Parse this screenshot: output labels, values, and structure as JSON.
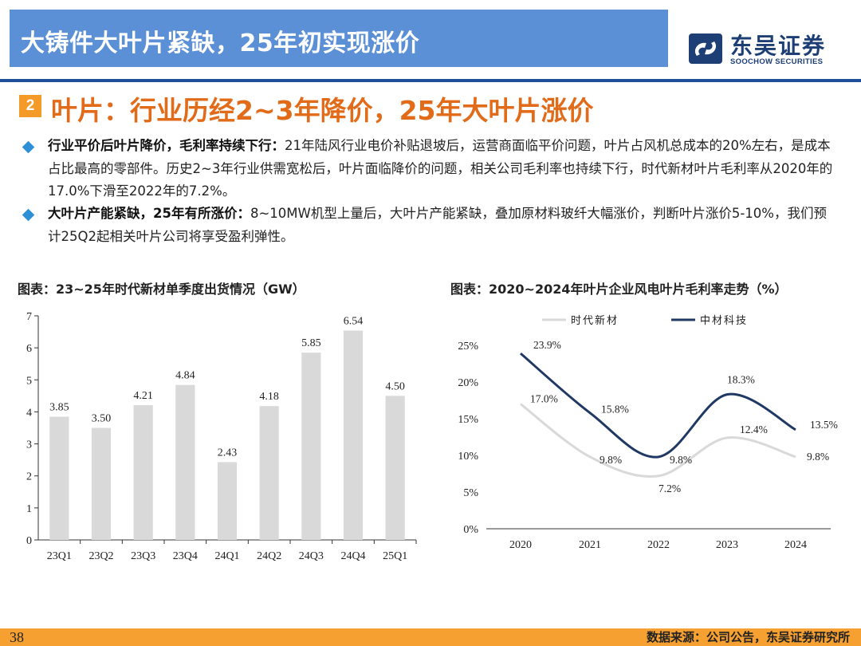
{
  "header": {
    "title": "大铸件大叶片紧缺，25年初实现涨价",
    "logo_cn": "东吴证券",
    "logo_en": "SOOCHOW SECURITIES"
  },
  "section": {
    "number": "2",
    "title": "叶片：行业历经2~3年降价，25年大叶片涨价"
  },
  "bullets": [
    {
      "bold": "行业平价后叶片降价，毛利率持续下行：",
      "text": "21年陆风行业电价补贴退坡后，运营商面临平价问题，叶片占风机总成本的20%左右，是成本占比最高的零部件。历史2~3年行业供需宽松后，叶片面临降价的问题，相关公司毛利率也持续下行，时代新材叶片毛利率从2020年的17.0%下滑至2022年的7.2%。"
    },
    {
      "bold": "大叶片产能紧缺，25年有所涨价：",
      "text": "8~10MW机型上量后，大叶片产能紧缺，叠加原材料玻纤大幅涨价，判断叶片涨价5-10%，我们预计25Q2起相关叶片公司将享受盈利弹性。"
    }
  ],
  "chart_titles": [
    "图表：23~25年时代新材单季度出货情况（GW）",
    "图表：2020~2024年叶片企业风电叶片毛利率走势（%）"
  ],
  "chart_data": [
    {
      "type": "bar",
      "title": "图表：23~25年时代新材单季度出货情况（GW）",
      "categories": [
        "23Q1",
        "23Q2",
        "23Q3",
        "23Q4",
        "24Q1",
        "24Q2",
        "24Q3",
        "24Q4",
        "25Q1"
      ],
      "values": [
        3.85,
        3.5,
        4.21,
        4.84,
        2.43,
        4.18,
        5.85,
        6.54,
        4.5
      ],
      "data_labels": [
        "3.85",
        "3.50",
        "4.21",
        "4.84",
        "2.43",
        "4.18",
        "5.85",
        "6.54",
        "4.50"
      ],
      "ylim": [
        0,
        7
      ],
      "yticks": [
        "0",
        "1",
        "2",
        "3",
        "4",
        "5",
        "6",
        "7"
      ],
      "bar_color": "#d9d9d9",
      "grid": false
    },
    {
      "type": "line",
      "title": "图表：2020~2024年叶片企业风电叶片毛利率走势（%）",
      "x": [
        "2020",
        "2021",
        "2022",
        "2023",
        "2024"
      ],
      "series": [
        {
          "name": "时代新材",
          "values": [
            17.0,
            9.8,
            7.2,
            12.4,
            9.8
          ],
          "labels": [
            "17.0%",
            "9.8%",
            "7.2%",
            "12.4%",
            "9.8%"
          ],
          "color": "#d9d9d9"
        },
        {
          "name": "中材科技",
          "values": [
            23.9,
            15.8,
            9.8,
            18.3,
            13.5
          ],
          "labels": [
            "23.9%",
            "15.8%",
            "9.8%",
            "18.3%",
            "13.5%"
          ],
          "color": "#1f3864"
        }
      ],
      "ylim": [
        0,
        25
      ],
      "yticks": [
        "0%",
        "5%",
        "10%",
        "15%",
        "20%",
        "25%"
      ],
      "legend": "top",
      "smooth": true,
      "grid": false
    }
  ],
  "footer": {
    "page": "38",
    "source": "数据来源：公司公告，东吴证券研究所"
  }
}
